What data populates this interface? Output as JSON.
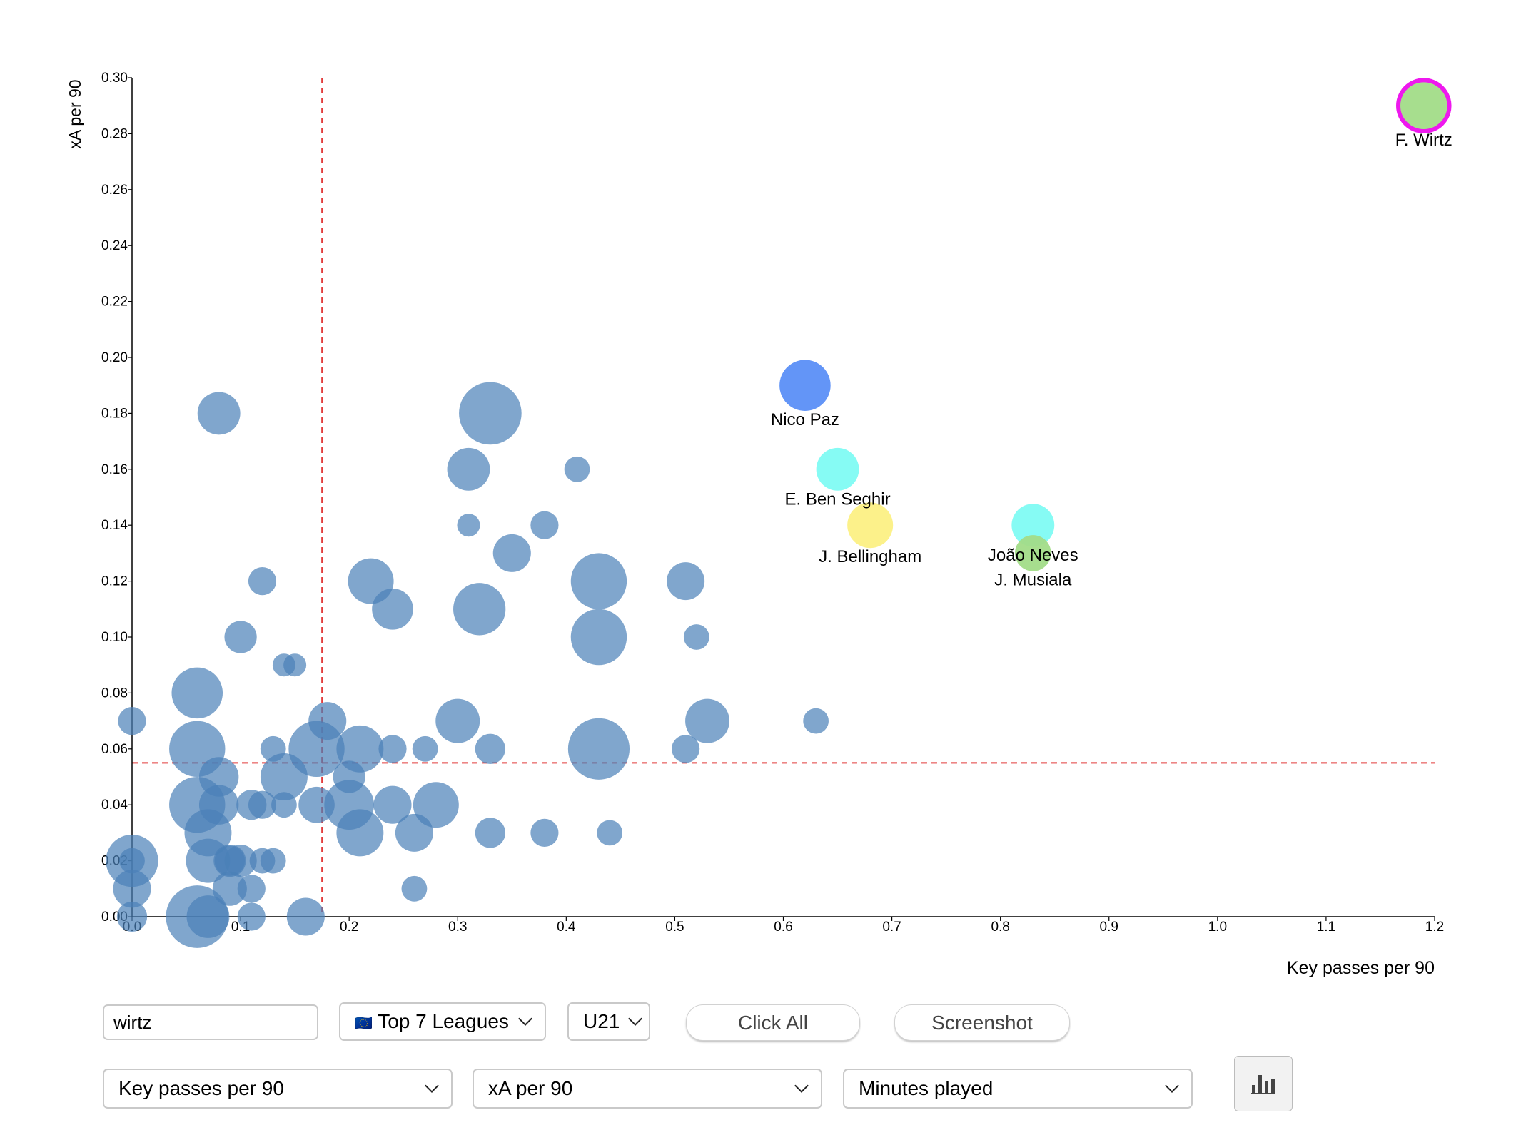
{
  "colors": {
    "default": "#4a80b8",
    "highlight_ring": "#ee18ee",
    "median_line": "#e23c3c"
  },
  "chart_data": {
    "type": "scatter",
    "xlabel": "Key passes per 90",
    "ylabel": "xA per 90",
    "xlim": [
      0.0,
      1.2
    ],
    "ylim": [
      0.0,
      0.3
    ],
    "x_ticks": [
      "0.0",
      "0.1",
      "0.2",
      "0.3",
      "0.4",
      "0.5",
      "0.6",
      "0.7",
      "0.8",
      "0.9",
      "1.0",
      "1.1",
      "1.2"
    ],
    "y_ticks": [
      "0.00",
      "0.02",
      "0.04",
      "0.06",
      "0.08",
      "0.10",
      "0.12",
      "0.14",
      "0.16",
      "0.18",
      "0.20",
      "0.22",
      "0.24",
      "0.26",
      "0.28",
      "0.30"
    ],
    "median_x": 0.175,
    "median_y": 0.055,
    "size_metric": "Minutes played",
    "highlighted": [
      {
        "name": "F. Wirtz",
        "x": 1.19,
        "y": 0.29,
        "size": 2000,
        "color": "#a2dc88",
        "selected": true
      },
      {
        "name": "Nico Paz",
        "x": 0.62,
        "y": 0.19,
        "size": 2000,
        "color": "#5b8ff7"
      },
      {
        "name": "E. Ben Seghir",
        "x": 0.65,
        "y": 0.16,
        "size": 1400,
        "color": "#80fbf3"
      },
      {
        "name": "J. Bellingham",
        "x": 0.68,
        "y": 0.14,
        "size": 1600,
        "color": "#fcf084"
      },
      {
        "name": "João Neves",
        "x": 0.83,
        "y": 0.14,
        "size": 1400,
        "color": "#80fbf3"
      },
      {
        "name": "J. Musiala",
        "x": 0.83,
        "y": 0.13,
        "size": 1000,
        "color": "#a2dc88"
      }
    ],
    "points": [
      [
        0.08,
        0.18,
        1400
      ],
      [
        0.33,
        0.18,
        3000
      ],
      [
        0.31,
        0.16,
        1400
      ],
      [
        0.41,
        0.16,
        500
      ],
      [
        0.31,
        0.14,
        400
      ],
      [
        0.38,
        0.14,
        600
      ],
      [
        0.35,
        0.13,
        1100
      ],
      [
        0.12,
        0.12,
        600
      ],
      [
        0.22,
        0.12,
        1600
      ],
      [
        0.43,
        0.12,
        2400
      ],
      [
        0.51,
        0.12,
        1100
      ],
      [
        0.24,
        0.11,
        1300
      ],
      [
        0.32,
        0.11,
        2100
      ],
      [
        0.1,
        0.1,
        800
      ],
      [
        0.43,
        0.1,
        2400
      ],
      [
        0.52,
        0.1,
        500
      ],
      [
        0.14,
        0.09,
        400
      ],
      [
        0.15,
        0.09,
        400
      ],
      [
        0.06,
        0.08,
        2000
      ],
      [
        0.0,
        0.07,
        600
      ],
      [
        0.18,
        0.07,
        1100
      ],
      [
        0.3,
        0.07,
        1500
      ],
      [
        0.53,
        0.07,
        1500
      ],
      [
        0.63,
        0.07,
        500
      ],
      [
        0.06,
        0.06,
        2400
      ],
      [
        0.13,
        0.06,
        500
      ],
      [
        0.17,
        0.06,
        2400
      ],
      [
        0.21,
        0.06,
        1700
      ],
      [
        0.24,
        0.06,
        600
      ],
      [
        0.27,
        0.06,
        500
      ],
      [
        0.33,
        0.06,
        700
      ],
      [
        0.43,
        0.06,
        2900
      ],
      [
        0.51,
        0.06,
        600
      ],
      [
        0.08,
        0.05,
        1200
      ],
      [
        0.14,
        0.05,
        1700
      ],
      [
        0.2,
        0.05,
        800
      ],
      [
        0.06,
        0.04,
        2400
      ],
      [
        0.08,
        0.04,
        1200
      ],
      [
        0.11,
        0.04,
        700
      ],
      [
        0.12,
        0.04,
        600
      ],
      [
        0.14,
        0.04,
        500
      ],
      [
        0.17,
        0.04,
        1000
      ],
      [
        0.2,
        0.04,
        1900
      ],
      [
        0.24,
        0.04,
        1100
      ],
      [
        0.28,
        0.04,
        1600
      ],
      [
        0.07,
        0.03,
        1700
      ],
      [
        0.21,
        0.03,
        1700
      ],
      [
        0.26,
        0.03,
        1100
      ],
      [
        0.33,
        0.03,
        700
      ],
      [
        0.38,
        0.03,
        600
      ],
      [
        0.44,
        0.03,
        500
      ],
      [
        0.0,
        0.02,
        2100
      ],
      [
        0.0,
        0.02,
        500
      ],
      [
        0.07,
        0.02,
        1500
      ],
      [
        0.09,
        0.02,
        800
      ],
      [
        0.1,
        0.02,
        800
      ],
      [
        0.12,
        0.02,
        500
      ],
      [
        0.13,
        0.02,
        500
      ],
      [
        0.09,
        0.02,
        700
      ],
      [
        0.0,
        0.01,
        1100
      ],
      [
        0.09,
        0.01,
        900
      ],
      [
        0.11,
        0.01,
        600
      ],
      [
        0.26,
        0.01,
        500
      ],
      [
        0.0,
        0.0,
        700
      ],
      [
        0.06,
        0.0,
        3000
      ],
      [
        0.07,
        0.0,
        1400
      ],
      [
        0.11,
        0.0,
        600
      ],
      [
        0.16,
        0.0,
        1100
      ]
    ]
  },
  "controls": {
    "search": {
      "value": "wirtz",
      "placeholder": ""
    },
    "league_flag": "🇪🇺",
    "league": "Top 7 Leagues",
    "age": "U21",
    "click_all": "Click All",
    "screenshot": "Screenshot",
    "x_metric": "Key passes per 90",
    "y_metric": "xA per 90",
    "size_metric": "Minutes played",
    "chart_icon": "bar-chart-icon"
  }
}
